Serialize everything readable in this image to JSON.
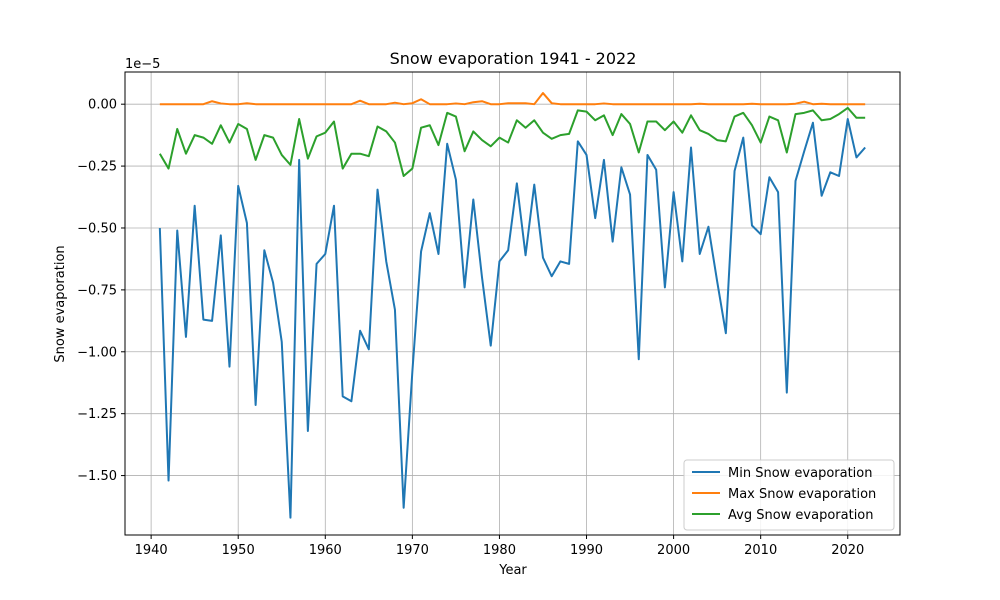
{
  "chart_data": {
    "type": "line",
    "title": "Snow evaporation 1941 - 2022",
    "xlabel": "Year",
    "ylabel": "Snow evaporation",
    "offset_text": "1e−5",
    "xlim": [
      1937,
      2026
    ],
    "ylim": [
      -1.74,
      0.13
    ],
    "x_ticks": [
      1940,
      1950,
      1960,
      1970,
      1980,
      1990,
      2000,
      2010,
      2020
    ],
    "x_tick_labels": [
      "1940",
      "1950",
      "1960",
      "1970",
      "1980",
      "1990",
      "2000",
      "2010",
      "2020"
    ],
    "y_ticks": [
      0.0,
      -0.25,
      -0.5,
      -0.75,
      -1.0,
      -1.25,
      -1.5
    ],
    "y_tick_labels": [
      "0.00",
      "−0.25",
      "−0.50",
      "−0.75",
      "−1.00",
      "−1.25",
      "−1.50"
    ],
    "grid": true,
    "legend_position": "lower-right",
    "x_start": 1941,
    "series": [
      {
        "name": "Min Snow evaporation",
        "color": "#1f77b4",
        "values": [
          -0.5,
          -1.52,
          -0.51,
          -0.94,
          -0.41,
          -0.87,
          -0.875,
          -0.53,
          -1.06,
          -0.33,
          -0.48,
          -1.215,
          -0.59,
          -0.72,
          -0.96,
          -1.67,
          -0.225,
          -1.32,
          -0.645,
          -0.605,
          -0.41,
          -1.18,
          -1.2,
          -0.915,
          -0.99,
          -0.345,
          -0.635,
          -0.83,
          -1.63,
          -1.08,
          -0.595,
          -0.44,
          -0.605,
          -0.16,
          -0.305,
          -0.74,
          -0.385,
          -0.7,
          -0.975,
          -0.635,
          -0.59,
          -0.32,
          -0.61,
          -0.325,
          -0.62,
          -0.695,
          -0.635,
          -0.645,
          -0.15,
          -0.205,
          -0.46,
          -0.225,
          -0.555,
          -0.255,
          -0.365,
          -1.03,
          -0.205,
          -0.265,
          -0.74,
          -0.355,
          -0.635,
          -0.175,
          -0.605,
          -0.495,
          -0.715,
          -0.925,
          -0.27,
          -0.135,
          -0.49,
          -0.525,
          -0.295,
          -0.355,
          -1.165,
          -0.31,
          -0.19,
          -0.075,
          -0.37,
          -0.275,
          -0.29,
          -0.06,
          -0.215,
          -0.175
        ]
      },
      {
        "name": "Max Snow evaporation",
        "color": "#ff7f0e",
        "values": [
          0.0,
          0.0,
          0.0,
          0.0,
          0.0,
          0.0,
          0.012,
          0.003,
          0.0,
          0.0,
          0.004,
          0.0,
          0.0,
          0.0,
          0.0,
          0.0,
          0.0,
          0.0,
          0.0,
          0.0,
          0.0,
          0.0,
          0.0,
          0.014,
          0.0,
          0.0,
          0.0,
          0.006,
          0.0,
          0.004,
          0.02,
          0.0,
          0.0,
          0.0,
          0.003,
          0.0,
          0.008,
          0.012,
          0.0,
          0.0,
          0.004,
          0.004,
          0.004,
          0.0,
          0.045,
          0.004,
          0.0,
          0.0,
          0.0,
          0.0,
          0.0,
          0.003,
          0.0,
          0.0,
          0.0,
          0.0,
          0.0,
          0.0,
          0.0,
          0.0,
          0.0,
          0.0,
          0.002,
          0.0,
          0.0,
          0.0,
          0.0,
          0.0,
          0.002,
          0.0,
          0.0,
          0.0,
          0.0,
          0.002,
          0.01,
          0.0,
          0.002,
          0.0,
          0.0,
          0.0,
          0.0,
          0.0
        ]
      },
      {
        "name": "Avg Snow evaporation",
        "color": "#2ca02c",
        "values": [
          -0.2,
          -0.26,
          -0.1,
          -0.2,
          -0.125,
          -0.135,
          -0.16,
          -0.085,
          -0.155,
          -0.08,
          -0.1,
          -0.225,
          -0.125,
          -0.135,
          -0.205,
          -0.245,
          -0.06,
          -0.22,
          -0.13,
          -0.115,
          -0.07,
          -0.26,
          -0.2,
          -0.2,
          -0.21,
          -0.09,
          -0.11,
          -0.155,
          -0.29,
          -0.26,
          -0.095,
          -0.085,
          -0.165,
          -0.035,
          -0.05,
          -0.19,
          -0.11,
          -0.145,
          -0.17,
          -0.135,
          -0.155,
          -0.065,
          -0.095,
          -0.065,
          -0.115,
          -0.14,
          -0.125,
          -0.12,
          -0.025,
          -0.03,
          -0.065,
          -0.045,
          -0.125,
          -0.04,
          -0.08,
          -0.195,
          -0.07,
          -0.07,
          -0.105,
          -0.07,
          -0.115,
          -0.045,
          -0.105,
          -0.12,
          -0.145,
          -0.15,
          -0.05,
          -0.035,
          -0.085,
          -0.155,
          -0.05,
          -0.065,
          -0.195,
          -0.04,
          -0.035,
          -0.025,
          -0.065,
          -0.06,
          -0.04,
          -0.015,
          -0.055,
          -0.055
        ]
      }
    ]
  }
}
